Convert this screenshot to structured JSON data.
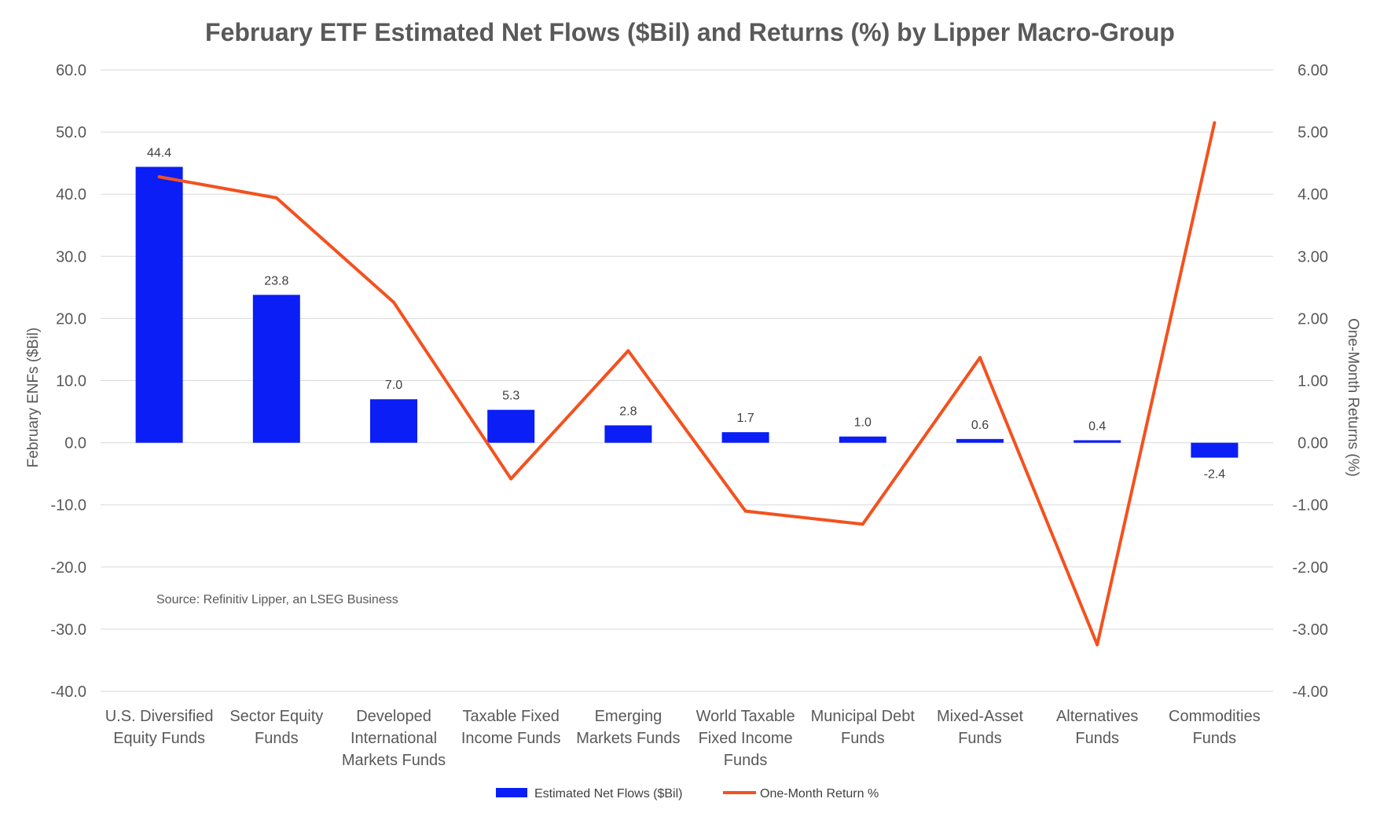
{
  "chart_data": {
    "type": "bar",
    "title": "February ETF Estimated Net Flows ($Bil) and Returns (%) by Lipper Macro-Group",
    "ylabel": "February ENFs ($Bil)",
    "y2label": "One-Month Returns (%)",
    "ylim": [
      -40,
      60
    ],
    "y2lim": [
      -4,
      6
    ],
    "yticks": [
      "60.0",
      "50.0",
      "40.0",
      "30.0",
      "20.0",
      "10.0",
      "0.0",
      "-10.0",
      "-20.0",
      "-30.0",
      "-40.0"
    ],
    "y2ticks": [
      "6.00",
      "5.00",
      "4.00",
      "3.00",
      "2.00",
      "1.00",
      "0.00",
      "-1.00",
      "-2.00",
      "-3.00",
      "-4.00"
    ],
    "categories": [
      [
        "U.S. Diversified",
        "Equity Funds"
      ],
      [
        "Sector Equity",
        "Funds"
      ],
      [
        "Developed",
        "International",
        "Markets Funds"
      ],
      [
        "Taxable Fixed",
        "Income Funds"
      ],
      [
        "Emerging",
        "Markets Funds"
      ],
      [
        "World Taxable",
        "Fixed Income",
        "Funds"
      ],
      [
        "Municipal Debt",
        "Funds"
      ],
      [
        "Mixed-Asset",
        "Funds"
      ],
      [
        "Alternatives",
        "Funds"
      ],
      [
        "Commodities",
        "Funds"
      ]
    ],
    "series": [
      {
        "name": "Estimated Net Flows ($Bil)",
        "type": "bar",
        "axis": "left",
        "color": "#0a1ef5",
        "values": [
          44.4,
          23.8,
          7.0,
          5.3,
          2.8,
          1.7,
          1.0,
          0.6,
          0.4,
          -2.4
        ],
        "labels": [
          "44.4",
          "23.8",
          "7.0",
          "5.3",
          "2.8",
          "1.7",
          "1.0",
          "0.6",
          "0.4",
          "-2.4"
        ]
      },
      {
        "name": "One-Month Return %",
        "type": "line",
        "axis": "right",
        "color": "#f4511e",
        "values": [
          4.28,
          3.94,
          2.26,
          -0.58,
          1.48,
          -1.1,
          -1.31,
          1.37,
          -3.25,
          5.15
        ]
      }
    ],
    "annotation": "Source: Refinitiv Lipper, an LSEG Business",
    "grid": true,
    "legend": "bottom-center"
  }
}
